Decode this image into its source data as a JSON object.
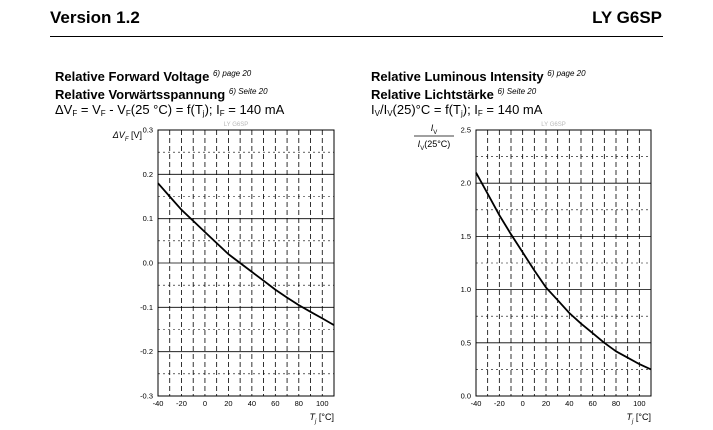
{
  "header": {
    "version": "Version 1.2",
    "product": "LY G6SP"
  },
  "left_panel": {
    "title_en": "Relative Forward Voltage",
    "title_de": "Relative Vorwärtsspannung",
    "note_en": "6) page 20",
    "note_de": "6) Seite 20",
    "formula": "ΔVF = VF - VF(25 °C) = f(Tj); IF = 140 mA"
  },
  "right_panel": {
    "title_en": "Relative Luminous Intensity",
    "title_de": "Relative Lichtstärke",
    "note_en": "6) page 20",
    "note_de": "6) Seite 20",
    "formula": "IV/IV(25)°C = f(Tj); IF = 140 mA"
  },
  "chart_data": [
    {
      "type": "line",
      "watermark": "LY G6SP",
      "ylabel": "ΔVF [V]",
      "xlabel": "Tj [°C]",
      "xlim": [
        -40,
        110
      ],
      "ylim": [
        -0.3,
        0.3
      ],
      "x_ticks": [
        -40,
        -20,
        0,
        20,
        40,
        60,
        80,
        100
      ],
      "y_ticks": [
        "0.3",
        "0.2",
        "0.1",
        "0.0",
        "-0.1",
        "-0.2",
        "-0.3"
      ],
      "grid": true,
      "series": [
        {
          "x": [
            -40,
            -30,
            -20,
            -10,
            0,
            10,
            20,
            30,
            40,
            50,
            60,
            70,
            80,
            90,
            100,
            110
          ],
          "y": [
            0.18,
            0.15,
            0.12,
            0.095,
            0.07,
            0.045,
            0.02,
            0.0,
            -0.02,
            -0.04,
            -0.06,
            -0.078,
            -0.095,
            -0.11,
            -0.125,
            -0.14
          ]
        }
      ]
    },
    {
      "type": "line",
      "watermark": "LY G6SP",
      "ylabel_num": "IV",
      "ylabel_den": "IV(25°C)",
      "xlabel": "Tj [°C]",
      "xlim": [
        -40,
        110
      ],
      "ylim": [
        0,
        2.5
      ],
      "x_ticks": [
        -40,
        -20,
        0,
        20,
        40,
        60,
        80,
        100
      ],
      "y_ticks": [
        "2.5",
        "2.0",
        "1.5",
        "1.0",
        "0.5",
        "0.0"
      ],
      "grid": true,
      "series": [
        {
          "x": [
            -40,
            -30,
            -20,
            -10,
            0,
            10,
            20,
            30,
            40,
            50,
            60,
            70,
            80,
            90,
            100,
            110
          ],
          "y": [
            2.1,
            1.9,
            1.7,
            1.52,
            1.35,
            1.18,
            1.02,
            0.9,
            0.78,
            0.68,
            0.59,
            0.5,
            0.42,
            0.36,
            0.3,
            0.25
          ]
        }
      ]
    }
  ]
}
